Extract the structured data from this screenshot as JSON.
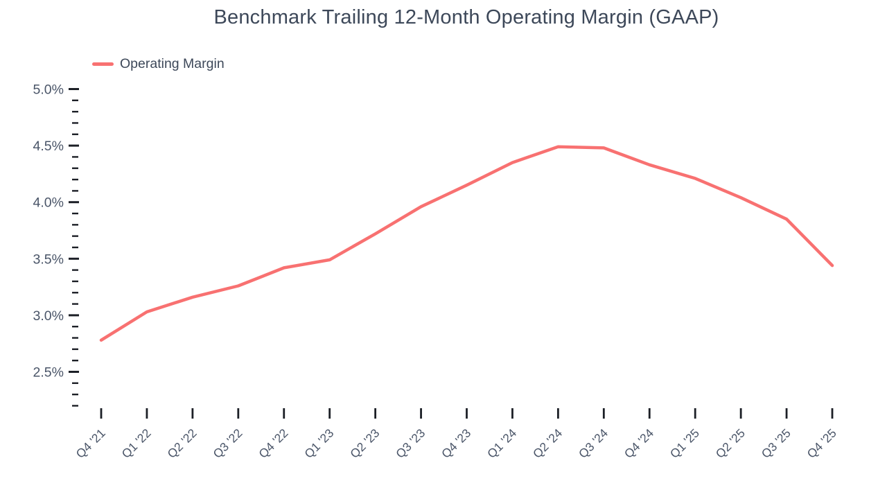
{
  "page": {
    "background": "#ffffff"
  },
  "chart_data": {
    "type": "line",
    "title": "Benchmark Trailing 12-Month Operating Margin (GAAP)",
    "legend": {
      "position": "top-left",
      "items": [
        {
          "label": "Operating Margin",
          "color": "#f87171"
        }
      ]
    },
    "categories": [
      "Q4 '21",
      "Q1 '22",
      "Q2 '22",
      "Q3 '22",
      "Q4 '22",
      "Q1 '23",
      "Q2 '23",
      "Q3 '23",
      "Q4 '23",
      "Q1 '24",
      "Q2 '24",
      "Q3 '24",
      "Q4 '24",
      "Q1 '25",
      "Q2 '25",
      "Q3 '25",
      "Q4 '25"
    ],
    "series": [
      {
        "name": "Operating Margin",
        "color": "#f87171",
        "values": [
          2.78,
          3.03,
          3.16,
          3.26,
          3.42,
          3.49,
          3.72,
          3.96,
          4.15,
          4.35,
          4.49,
          4.48,
          4.33,
          4.21,
          4.04,
          3.85,
          3.44
        ]
      }
    ],
    "xlabel": "",
    "ylabel": "",
    "x_axis": {
      "tick_count": 17,
      "label_rotation_deg": -45
    },
    "y_axis": {
      "unit": "%",
      "tick_labels": [
        "5.0%",
        "4.5%",
        "4.0%",
        "3.5%",
        "3.0%",
        "2.5%"
      ],
      "tick_values": [
        5.0,
        4.5,
        4.0,
        3.5,
        3.0,
        2.5
      ],
      "minor_tick_step": 0.1,
      "min": 2.2,
      "max": 5.0,
      "grid": false
    },
    "colors": {
      "accent": "#f87171",
      "title_text": "#3d4859",
      "axis_label_text": "#4a5568",
      "tick_mark": "#1c1f26"
    }
  }
}
